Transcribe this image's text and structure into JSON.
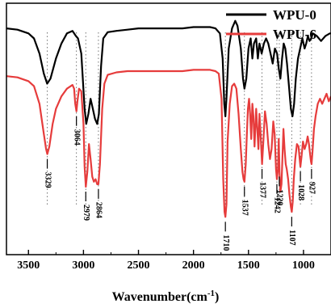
{
  "chart_data": {
    "type": "line",
    "xlabel": "Wavenumber(cm",
    "xlabel_sup": "-1",
    "xlabel_close": ")",
    "xlim": [
      3700,
      750
    ],
    "x_reversed": true,
    "x_ticks": [
      3500,
      3000,
      2500,
      2000,
      1500,
      1000
    ],
    "legend_position": "top-right",
    "series": [
      {
        "name": "WPU-0",
        "color": "#000000",
        "points": [
          [
            3700,
            0.9
          ],
          [
            3600,
            0.895
          ],
          [
            3500,
            0.88
          ],
          [
            3450,
            0.86
          ],
          [
            3400,
            0.8
          ],
          [
            3360,
            0.72
          ],
          [
            3330,
            0.68
          ],
          [
            3300,
            0.7
          ],
          [
            3250,
            0.78
          ],
          [
            3200,
            0.84
          ],
          [
            3150,
            0.88
          ],
          [
            3100,
            0.89
          ],
          [
            3070,
            0.87
          ],
          [
            3050,
            0.86
          ],
          [
            3020,
            0.8
          ],
          [
            2990,
            0.58
          ],
          [
            2975,
            0.52
          ],
          [
            2955,
            0.56
          ],
          [
            2935,
            0.62
          ],
          [
            2915,
            0.58
          ],
          [
            2895,
            0.54
          ],
          [
            2875,
            0.52
          ],
          [
            2860,
            0.56
          ],
          [
            2840,
            0.75
          ],
          [
            2820,
            0.86
          ],
          [
            2780,
            0.885
          ],
          [
            2700,
            0.89
          ],
          [
            2600,
            0.895
          ],
          [
            2500,
            0.9
          ],
          [
            2400,
            0.9
          ],
          [
            2300,
            0.9
          ],
          [
            2200,
            0.9
          ],
          [
            2100,
            0.9
          ],
          [
            2000,
            0.905
          ],
          [
            1900,
            0.905
          ],
          [
            1850,
            0.905
          ],
          [
            1800,
            0.9
          ],
          [
            1760,
            0.88
          ],
          [
            1735,
            0.78
          ],
          [
            1720,
            0.6
          ],
          [
            1710,
            0.55
          ],
          [
            1700,
            0.62
          ],
          [
            1680,
            0.82
          ],
          [
            1650,
            0.9
          ],
          [
            1620,
            0.93
          ],
          [
            1600,
            0.91
          ],
          [
            1570,
            0.82
          ],
          [
            1550,
            0.7
          ],
          [
            1537,
            0.66
          ],
          [
            1520,
            0.7
          ],
          [
            1500,
            0.82
          ],
          [
            1480,
            0.86
          ],
          [
            1465,
            0.78
          ],
          [
            1450,
            0.84
          ],
          [
            1430,
            0.86
          ],
          [
            1415,
            0.78
          ],
          [
            1400,
            0.84
          ],
          [
            1380,
            0.8
          ],
          [
            1360,
            0.84
          ],
          [
            1340,
            0.86
          ],
          [
            1320,
            0.84
          ],
          [
            1300,
            0.8
          ],
          [
            1280,
            0.76
          ],
          [
            1260,
            0.82
          ],
          [
            1240,
            0.8
          ],
          [
            1225,
            0.74
          ],
          [
            1210,
            0.7
          ],
          [
            1195,
            0.78
          ],
          [
            1180,
            0.84
          ],
          [
            1165,
            0.82
          ],
          [
            1150,
            0.76
          ],
          [
            1130,
            0.66
          ],
          [
            1115,
            0.58
          ],
          [
            1100,
            0.55
          ],
          [
            1085,
            0.6
          ],
          [
            1070,
            0.7
          ],
          [
            1050,
            0.78
          ],
          [
            1030,
            0.82
          ],
          [
            1010,
            0.86
          ],
          [
            990,
            0.82
          ],
          [
            975,
            0.84
          ],
          [
            960,
            0.87
          ],
          [
            945,
            0.85
          ],
          [
            930,
            0.86
          ],
          [
            915,
            0.88
          ],
          [
            880,
            0.87
          ],
          [
            840,
            0.85
          ],
          [
            800,
            0.87
          ],
          [
            760,
            0.88
          ],
          [
            750,
            0.88
          ]
        ]
      },
      {
        "name": "WPU-6",
        "color": "#e63c3c",
        "points": [
          [
            3700,
            0.71
          ],
          [
            3600,
            0.705
          ],
          [
            3500,
            0.69
          ],
          [
            3450,
            0.67
          ],
          [
            3400,
            0.6
          ],
          [
            3360,
            0.48
          ],
          [
            3340,
            0.42
          ],
          [
            3329,
            0.4
          ],
          [
            3310,
            0.43
          ],
          [
            3280,
            0.52
          ],
          [
            3250,
            0.58
          ],
          [
            3200,
            0.63
          ],
          [
            3150,
            0.66
          ],
          [
            3100,
            0.675
          ],
          [
            3085,
            0.66
          ],
          [
            3075,
            0.6
          ],
          [
            3064,
            0.57
          ],
          [
            3055,
            0.61
          ],
          [
            3040,
            0.66
          ],
          [
            3020,
            0.65
          ],
          [
            3000,
            0.52
          ],
          [
            2990,
            0.35
          ],
          [
            2979,
            0.27
          ],
          [
            2965,
            0.33
          ],
          [
            2950,
            0.44
          ],
          [
            2935,
            0.38
          ],
          [
            2920,
            0.31
          ],
          [
            2905,
            0.29
          ],
          [
            2890,
            0.3
          ],
          [
            2875,
            0.28
          ],
          [
            2864,
            0.28
          ],
          [
            2850,
            0.36
          ],
          [
            2830,
            0.58
          ],
          [
            2810,
            0.68
          ],
          [
            2780,
            0.715
          ],
          [
            2700,
            0.725
          ],
          [
            2600,
            0.73
          ],
          [
            2500,
            0.73
          ],
          [
            2400,
            0.73
          ],
          [
            2300,
            0.73
          ],
          [
            2200,
            0.73
          ],
          [
            2100,
            0.73
          ],
          [
            2000,
            0.735
          ],
          [
            1900,
            0.735
          ],
          [
            1850,
            0.735
          ],
          [
            1800,
            0.73
          ],
          [
            1770,
            0.72
          ],
          [
            1745,
            0.62
          ],
          [
            1730,
            0.3
          ],
          [
            1718,
            0.17
          ],
          [
            1710,
            0.15
          ],
          [
            1700,
            0.2
          ],
          [
            1690,
            0.45
          ],
          [
            1670,
            0.6
          ],
          [
            1650,
            0.67
          ],
          [
            1630,
            0.68
          ],
          [
            1610,
            0.66
          ],
          [
            1590,
            0.56
          ],
          [
            1570,
            0.42
          ],
          [
            1555,
            0.33
          ],
          [
            1545,
            0.3
          ],
          [
            1537,
            0.29
          ],
          [
            1525,
            0.36
          ],
          [
            1515,
            0.48
          ],
          [
            1505,
            0.58
          ],
          [
            1495,
            0.62
          ],
          [
            1485,
            0.56
          ],
          [
            1475,
            0.46
          ],
          [
            1465,
            0.6
          ],
          [
            1455,
            0.55
          ],
          [
            1445,
            0.43
          ],
          [
            1430,
            0.58
          ],
          [
            1420,
            0.5
          ],
          [
            1410,
            0.42
          ],
          [
            1400,
            0.56
          ],
          [
            1390,
            0.48
          ],
          [
            1377,
            0.36
          ],
          [
            1365,
            0.45
          ],
          [
            1350,
            0.57
          ],
          [
            1335,
            0.52
          ],
          [
            1320,
            0.44
          ],
          [
            1305,
            0.38
          ],
          [
            1290,
            0.42
          ],
          [
            1275,
            0.53
          ],
          [
            1262,
            0.48
          ],
          [
            1250,
            0.34
          ],
          [
            1242,
            0.3
          ],
          [
            1232,
            0.34
          ],
          [
            1225,
            0.46
          ],
          [
            1218,
            0.33
          ],
          [
            1210,
            0.25
          ],
          [
            1200,
            0.28
          ],
          [
            1190,
            0.4
          ],
          [
            1182,
            0.5
          ],
          [
            1172,
            0.42
          ],
          [
            1162,
            0.36
          ],
          [
            1152,
            0.34
          ],
          [
            1140,
            0.3
          ],
          [
            1128,
            0.24
          ],
          [
            1115,
            0.19
          ],
          [
            1107,
            0.17
          ],
          [
            1098,
            0.21
          ],
          [
            1088,
            0.3
          ],
          [
            1075,
            0.38
          ],
          [
            1060,
            0.44
          ],
          [
            1045,
            0.43
          ],
          [
            1035,
            0.38
          ],
          [
            1028,
            0.35
          ],
          [
            1018,
            0.39
          ],
          [
            1005,
            0.45
          ],
          [
            990,
            0.42
          ],
          [
            975,
            0.44
          ],
          [
            962,
            0.47
          ],
          [
            950,
            0.44
          ],
          [
            940,
            0.4
          ],
          [
            932,
            0.37
          ],
          [
            927,
            0.36
          ],
          [
            918,
            0.41
          ],
          [
            905,
            0.5
          ],
          [
            890,
            0.55
          ],
          [
            870,
            0.6
          ],
          [
            850,
            0.62
          ],
          [
            830,
            0.6
          ],
          [
            810,
            0.62
          ],
          [
            790,
            0.64
          ],
          [
            770,
            0.61
          ],
          [
            750,
            0.63
          ]
        ]
      }
    ],
    "peak_labels": [
      {
        "label": "3329",
        "x": 3329,
        "y": 0.4
      },
      {
        "label": "3064",
        "x": 3064,
        "y": 0.57
      },
      {
        "label": "2979",
        "x": 2979,
        "y": 0.27
      },
      {
        "label": "2864",
        "x": 2864,
        "y": 0.28
      },
      {
        "label": "1710",
        "x": 1710,
        "y": 0.15
      },
      {
        "label": "1537",
        "x": 1537,
        "y": 0.29
      },
      {
        "label": "1377",
        "x": 1377,
        "y": 0.36
      },
      {
        "label": "1242",
        "x": 1242,
        "y": 0.3
      },
      {
        "label": "1220",
        "x": 1220,
        "y": 0.33
      },
      {
        "label": "1107",
        "x": 1107,
        "y": 0.17
      },
      {
        "label": "1028",
        "x": 1028,
        "y": 0.35
      },
      {
        "label": "927",
        "x": 927,
        "y": 0.36
      }
    ],
    "guide_lines_x": [
      3329,
      3064,
      2979,
      2864,
      1710,
      1537,
      1377,
      1242,
      1220,
      1107,
      1028,
      927
    ]
  }
}
